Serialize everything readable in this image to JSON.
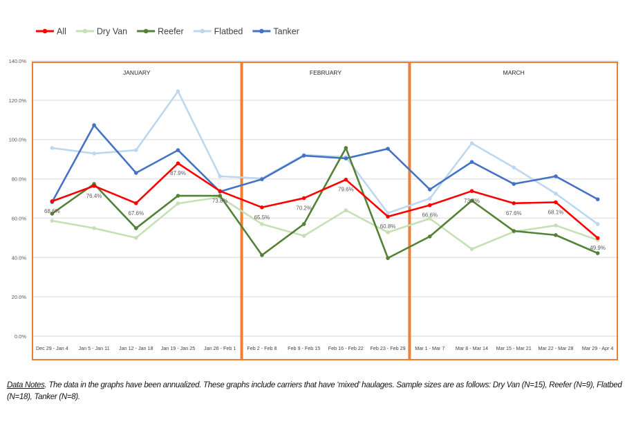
{
  "chart_data": {
    "type": "line",
    "categories": [
      "Dec 29 - Jan 4",
      "Jan 5 - Jan 11",
      "Jan 12 - Jan 18",
      "Jan 19 - Jan 25",
      "Jan 26 - Feb 1",
      "Feb 2 - Feb 8",
      "Feb 9 - Feb 15",
      "Feb 16 - Feb 22",
      "Feb 23 - Feb 29",
      "Mar 1 - Mar 7",
      "Mar 8 - Mar 14",
      "Mar 15 - Mar 21",
      "Mar 22 - Mar 28",
      "Mar 29 - Apr 4"
    ],
    "ylim": [
      0,
      140
    ],
    "yticks": [
      "0.0%",
      "20.0%",
      "40.0%",
      "60.0%",
      "80.0%",
      "100.0%",
      "120.0%",
      "140.0%"
    ],
    "grid": true,
    "legend": "top-left",
    "months": [
      {
        "label": "JANUARY",
        "span": 5
      },
      {
        "label": "FEBRUARY",
        "span": 4
      },
      {
        "label": "MARCH",
        "span": 5
      }
    ],
    "series": [
      {
        "name": "Dry Van",
        "color": "#c5e0b4",
        "values": [
          58.7,
          54.9,
          50.0,
          67.5,
          70.7,
          57.0,
          51.0,
          64.0,
          52.8,
          59.8,
          44.3,
          53.1,
          56.3,
          48.9
        ]
      },
      {
        "name": "Flatbed",
        "color": "#bdd7ee",
        "values": [
          95.7,
          92.9,
          94.6,
          124.5,
          81.3,
          80.2,
          92.2,
          91.1,
          62.6,
          70.0,
          98.1,
          85.8,
          72.5,
          57.0
        ]
      },
      {
        "name": "Tanker",
        "color": "#4472c4",
        "values": [
          68.2,
          107.3,
          83.0,
          94.6,
          73.5,
          79.8,
          91.8,
          90.4,
          95.3,
          74.6,
          88.6,
          77.4,
          81.3,
          69.6
        ]
      },
      {
        "name": "Reefer",
        "color": "#538135",
        "values": [
          62.3,
          77.4,
          54.9,
          71.4,
          71.4,
          41.2,
          57.0,
          95.7,
          39.7,
          50.7,
          68.9,
          53.5,
          51.4,
          42.2
        ]
      },
      {
        "name": "All",
        "color": "#ff0000",
        "values": [
          68.6,
          76.4,
          67.6,
          87.9,
          73.8,
          65.5,
          70.2,
          79.6,
          60.8,
          66.6,
          73.8,
          67.6,
          68.1,
          49.9
        ],
        "labels": [
          "68.6%",
          "76.4%",
          "67.6%",
          "87.9%",
          "73.8%",
          "65.5%",
          "70.2%",
          "79.6%",
          "60.8%",
          "66.6%",
          "73.8%",
          "67.6%",
          "68.1%",
          "49.9%"
        ]
      }
    ],
    "legend_order": [
      "All",
      "Dry Van",
      "Reefer",
      "Flatbed",
      "Tanker"
    ]
  },
  "notes": {
    "heading": "Data Notes",
    "text": ". The data in the graphs have been annualized. These graphs include carriers that have ‘mixed’ haulages. Sample sizes are as follows: Dry Van (N=15), Reefer (N=9), Flatbed (N=18), Tanker (N=8)."
  }
}
